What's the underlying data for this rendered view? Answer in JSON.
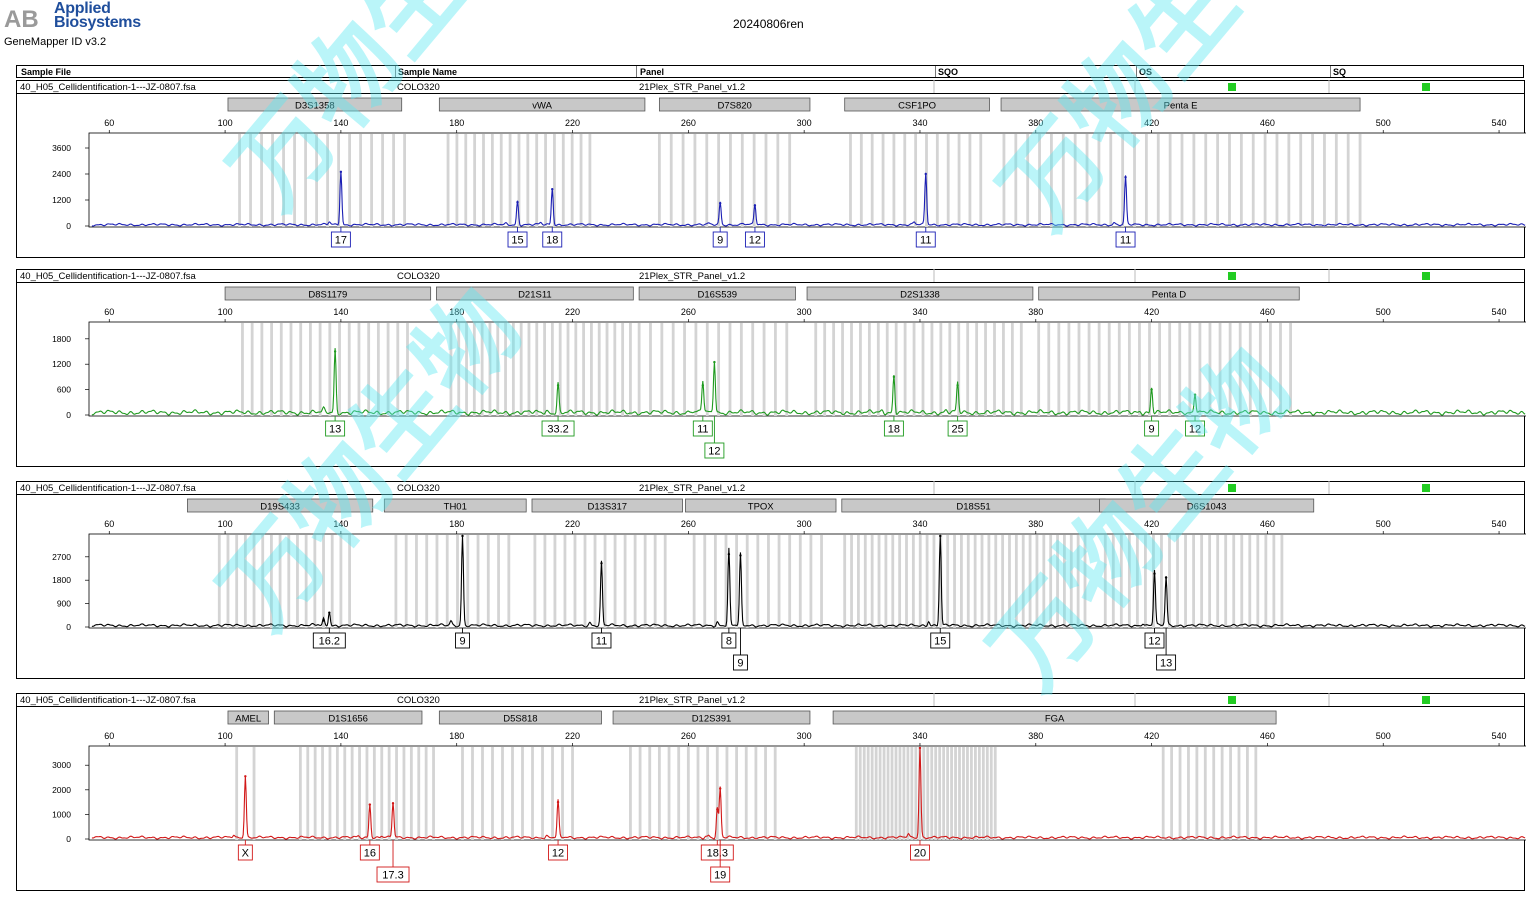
{
  "header": {
    "company": [
      "Applied",
      "Biosystems"
    ],
    "app": "GeneMapper ID v3.2",
    "run": "20240806ren"
  },
  "columns": [
    "Sample File",
    "Sample Name",
    "Panel",
    "SQO",
    "OS",
    "SQ"
  ],
  "colors": {
    "blue": "#1b1fb4",
    "green": "#1f9a1f",
    "black": "#000000",
    "red": "#d21818",
    "quality": "#22cc22",
    "bin": "#d4d4d4",
    "marker": "#c8c8c8"
  },
  "watermark": [
    "万物生物",
    "万物生物"
  ],
  "chart_data": [
    {
      "type": "line",
      "dye": "blue",
      "sample_file": "40_H05_Cellidentification-1---JZ-0807.fsa",
      "sample_name": "COLO320",
      "panel": "21Plex_STR_Panel_v1.2",
      "x_ticks": [
        60,
        100,
        140,
        180,
        220,
        260,
        300,
        340,
        380,
        420,
        460,
        500,
        540
      ],
      "xlim": [
        53,
        550
      ],
      "y_ticks": [
        0,
        1200,
        2400,
        3600
      ],
      "ylim": [
        0,
        4200
      ],
      "markers": [
        {
          "name": "D3S1358",
          "start": 101,
          "end": 161
        },
        {
          "name": "vWA",
          "start": 174,
          "end": 245
        },
        {
          "name": "D7S820",
          "start": 250,
          "end": 302
        },
        {
          "name": "CSF1PO",
          "start": 314,
          "end": 364
        },
        {
          "name": "Penta E",
          "start": 368,
          "end": 492
        }
      ],
      "bin_groups": [
        [
          105,
          162,
          16
        ],
        [
          177,
          226,
          17
        ],
        [
          250,
          295,
          12
        ],
        [
          316,
          361,
          13
        ],
        [
          369,
          492,
          31
        ]
      ],
      "peaks": [
        {
          "x": 140,
          "h": 2500
        },
        {
          "x": 201,
          "h": 1100
        },
        {
          "x": 213,
          "h": 1700
        },
        {
          "x": 271,
          "h": 1050
        },
        {
          "x": 283,
          "h": 950
        },
        {
          "x": 342,
          "h": 2400
        },
        {
          "x": 411,
          "h": 2250
        }
      ],
      "alleles": [
        {
          "label": "17",
          "x": 140,
          "row": 0
        },
        {
          "label": "15",
          "x": 201,
          "row": 0
        },
        {
          "label": "18",
          "x": 213,
          "row": 0
        },
        {
          "label": "9",
          "x": 271,
          "row": 0
        },
        {
          "label": "12",
          "x": 283,
          "row": 0
        },
        {
          "label": "11",
          "x": 342,
          "row": 0
        },
        {
          "label": "11",
          "x": 411,
          "row": 0
        }
      ]
    },
    {
      "type": "line",
      "dye": "green",
      "sample_file": "40_H05_Cellidentification-1---JZ-0807.fsa",
      "sample_name": "COLO320",
      "panel": "21Plex_STR_Panel_v1.2",
      "x_ticks": [
        60,
        100,
        140,
        180,
        220,
        260,
        300,
        340,
        380,
        420,
        460,
        500,
        540
      ],
      "xlim": [
        53,
        550
      ],
      "y_ticks": [
        0,
        600,
        1200,
        1800
      ],
      "ylim": [
        0,
        2150
      ],
      "markers": [
        {
          "name": "D8S1179",
          "start": 100,
          "end": 171
        },
        {
          "name": "D21S11",
          "start": 173,
          "end": 241
        },
        {
          "name": "D16S539",
          "start": 243,
          "end": 297
        },
        {
          "name": "D2S1338",
          "start": 301,
          "end": 379
        },
        {
          "name": "Penta D",
          "start": 381,
          "end": 471
        }
      ],
      "bin_groups": [
        [
          106,
          163,
          18
        ],
        [
          178,
          240,
          24
        ],
        [
          243,
          294,
          14
        ],
        [
          304,
          375,
          24
        ],
        [
          381,
          468,
          26
        ]
      ],
      "peaks": [
        {
          "x": 138,
          "h": 1500
        },
        {
          "x": 215,
          "h": 700
        },
        {
          "x": 265,
          "h": 700
        },
        {
          "x": 269,
          "h": 1250
        },
        {
          "x": 331,
          "h": 900
        },
        {
          "x": 353,
          "h": 700
        },
        {
          "x": 420,
          "h": 600
        },
        {
          "x": 435,
          "h": 480
        }
      ],
      "alleles": [
        {
          "label": "13",
          "x": 138,
          "row": 0
        },
        {
          "label": "33.2",
          "x": 215,
          "row": 0
        },
        {
          "label": "11",
          "x": 265,
          "row": 0
        },
        {
          "label": "12",
          "x": 269,
          "row": 1
        },
        {
          "label": "18",
          "x": 331,
          "row": 0
        },
        {
          "label": "25",
          "x": 353,
          "row": 0
        },
        {
          "label": "9",
          "x": 420,
          "row": 0
        },
        {
          "label": "12",
          "x": 435,
          "row": 0
        }
      ]
    },
    {
      "type": "line",
      "dye": "black",
      "sample_file": "40_H05_Cellidentification-1---JZ-0807.fsa",
      "sample_name": "COLO320",
      "panel": "21Plex_STR_Panel_v1.2",
      "x_ticks": [
        60,
        100,
        140,
        180,
        220,
        260,
        300,
        340,
        380,
        420,
        460,
        500,
        540
      ],
      "xlim": [
        53,
        550
      ],
      "y_ticks": [
        0,
        900,
        1800,
        2700
      ],
      "ylim": [
        0,
        3500
      ],
      "markers": [
        {
          "name": "D19S433",
          "start": 87,
          "end": 151
        },
        {
          "name": "TH01",
          "start": 155,
          "end": 204
        },
        {
          "name": "D13S317",
          "start": 206,
          "end": 258
        },
        {
          "name": "TPOX",
          "start": 259,
          "end": 311
        },
        {
          "name": "D18S51",
          "start": 313,
          "end": 404
        },
        {
          "name": "D6S1043",
          "start": 402,
          "end": 476
        }
      ],
      "bin_groups": [
        [
          98,
          143,
          16
        ],
        [
          159,
          198,
          12
        ],
        [
          207,
          252,
          14
        ],
        [
          262,
          306,
          13
        ],
        [
          314,
          397,
          36
        ],
        [
          404,
          465,
          23
        ]
      ],
      "peaks": [
        {
          "x": 134,
          "h": 250
        },
        {
          "x": 136,
          "h": 550
        },
        {
          "x": 182,
          "h": 3500
        },
        {
          "x": 230,
          "h": 2450
        },
        {
          "x": 274,
          "h": 2800
        },
        {
          "x": 278,
          "h": 2750
        },
        {
          "x": 347,
          "h": 3500
        },
        {
          "x": 421,
          "h": 2050
        },
        {
          "x": 425,
          "h": 1900
        }
      ],
      "alleles": [
        {
          "label": "16.2",
          "x": 136,
          "row": 0
        },
        {
          "label": "9",
          "x": 182,
          "row": 0
        },
        {
          "label": "11",
          "x": 230,
          "row": 0
        },
        {
          "label": "8",
          "x": 274,
          "row": 0
        },
        {
          "label": "9",
          "x": 278,
          "row": 1
        },
        {
          "label": "15",
          "x": 347,
          "row": 0
        },
        {
          "label": "12",
          "x": 421,
          "row": 0
        },
        {
          "label": "13",
          "x": 425,
          "row": 1
        }
      ]
    },
    {
      "type": "line",
      "dye": "red",
      "sample_file": "40_H05_Cellidentification-1---JZ-0807.fsa",
      "sample_name": "COLO320",
      "panel": "21Plex_STR_Panel_v1.2",
      "x_ticks": [
        60,
        100,
        140,
        180,
        220,
        260,
        300,
        340,
        380,
        420,
        460,
        500,
        540
      ],
      "xlim": [
        53,
        550
      ],
      "y_ticks": [
        0,
        1000,
        2000,
        3000
      ],
      "ylim": [
        0,
        3700
      ],
      "markers": [
        {
          "name": "AMEL",
          "start": 101,
          "end": 115
        },
        {
          "name": "D1S1656",
          "start": 117,
          "end": 168
        },
        {
          "name": "D5S818",
          "start": 174,
          "end": 230
        },
        {
          "name": "D12S391",
          "start": 234,
          "end": 302
        },
        {
          "name": "FGA",
          "start": 310,
          "end": 463
        }
      ],
      "bin_groups": [
        [
          104,
          110,
          2
        ],
        [
          126,
          172,
          19
        ],
        [
          182,
          220,
          12
        ],
        [
          240,
          290,
          16
        ],
        [
          318,
          366,
          36
        ],
        [
          424,
          456,
          12
        ]
      ],
      "peaks": [
        {
          "x": 107,
          "h": 2550
        },
        {
          "x": 150,
          "h": 1400
        },
        {
          "x": 158,
          "h": 1450
        },
        {
          "x": 215,
          "h": 1500
        },
        {
          "x": 270,
          "h": 1200
        },
        {
          "x": 271,
          "h": 2050
        },
        {
          "x": 340,
          "h": 3700
        }
      ],
      "alleles": [
        {
          "label": "X",
          "x": 107,
          "row": 0
        },
        {
          "label": "16",
          "x": 150,
          "row": 0
        },
        {
          "label": "17.3",
          "x": 158,
          "row": 1
        },
        {
          "label": "12",
          "x": 215,
          "row": 0
        },
        {
          "label": "18.3",
          "x": 270,
          "row": 0
        },
        {
          "label": "19",
          "x": 271,
          "row": 1
        },
        {
          "label": "20",
          "x": 340,
          "row": 0
        }
      ]
    }
  ]
}
